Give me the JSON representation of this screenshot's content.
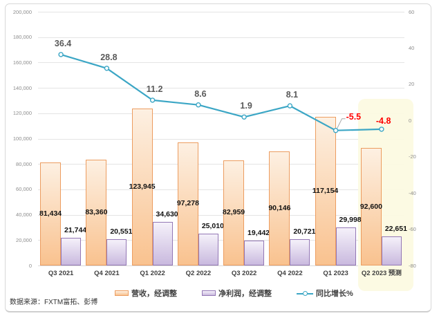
{
  "frame": {
    "source_note": "数据来源：FXTM富拓、彭博"
  },
  "chart_data": {
    "type": "bar",
    "subtype": "combo-bar-line-dual-axis",
    "categories": [
      "Q3 2021",
      "Q4 2021",
      "Q1 2022",
      "Q2 2022",
      "Q3 2022",
      "Q4 2022",
      "Q1 2023",
      "Q2 2023 预测"
    ],
    "series": [
      {
        "name": "营收，经调整",
        "type": "bar",
        "axis": "left",
        "values": [
          81434,
          83360,
          123945,
          97278,
          82959,
          90146,
          117154,
          92600
        ],
        "labels": [
          "81,434",
          "83,360",
          "123,945",
          "97,278",
          "82,959",
          "90,146",
          "117,154",
          "92,600"
        ],
        "label_position": "inside-center",
        "border_color": "#EC9C5F",
        "fill_top": "#FDF0E2",
        "fill_bottom": "#F9C28F"
      },
      {
        "name": "净利润，经调整",
        "type": "bar",
        "axis": "left",
        "values": [
          21744,
          20551,
          34630,
          25010,
          19442,
          20721,
          29998,
          22651
        ],
        "labels": [
          "21,744",
          "20,551",
          "34,630",
          "25,010",
          "19,442",
          "20,721",
          "29,998",
          "22,651"
        ],
        "label_position": "outside-top",
        "border_color": "#9377B5",
        "fill_top": "#F5F1FA",
        "fill_bottom": "#C9B9DE"
      },
      {
        "name": "同比增长%",
        "type": "line",
        "axis": "right",
        "values": [
          36.4,
          28.8,
          11.2,
          8.6,
          1.9,
          8.1,
          -5.5,
          -4.8
        ],
        "labels": [
          "36.4",
          "28.8",
          "11.2",
          "8.6",
          "1.9",
          "8.1",
          "-5.5",
          "-4.8"
        ],
        "label_colors": [
          "#595959",
          "#595959",
          "#595959",
          "#595959",
          "#595959",
          "#595959",
          "#FF0000",
          "#FF0000"
        ],
        "color": "#3BA6C5",
        "marker_fill": "#FFFFFF"
      }
    ],
    "left_axis": {
      "min": 0,
      "max": 200000,
      "step": 20000,
      "tick_labels": [
        "200,000",
        "180,000",
        "160,000",
        "140,000",
        "120,000",
        "100,000",
        "80,000",
        "60,000",
        "40,000",
        "20,000",
        "0"
      ]
    },
    "right_axis": {
      "min": -80,
      "max": 60,
      "step": 20,
      "tick_labels": [
        "60",
        "40",
        "20",
        "0",
        "-20",
        "-40",
        "-60",
        "-80"
      ]
    },
    "grid": true,
    "legend_position": "bottom",
    "highlight": {
      "category_index": 7,
      "label": "Q2 2023 预测",
      "color": "#FCFAE1"
    },
    "callout": {
      "point_label": "-5.5",
      "leader_color": "#A6A6A6"
    }
  }
}
